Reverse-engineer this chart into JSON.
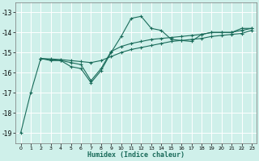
{
  "xlabel": "Humidex (Indice chaleur)",
  "ylabel": "",
  "bg_color": "#cff0ea",
  "grid_color": "#ffffff",
  "line_color": "#1a6b5a",
  "xlim": [
    -0.5,
    23.5
  ],
  "ylim": [
    -19.5,
    -12.5
  ],
  "yticks": [
    -19,
    -18,
    -17,
    -16,
    -15,
    -14,
    -13
  ],
  "xticks": [
    0,
    1,
    2,
    3,
    4,
    5,
    6,
    7,
    8,
    9,
    10,
    11,
    12,
    13,
    14,
    15,
    16,
    17,
    18,
    19,
    20,
    21,
    22,
    23
  ],
  "series1": [
    [
      0,
      -19.0
    ],
    [
      1,
      -17.0
    ],
    [
      2,
      -15.3
    ],
    [
      3,
      -15.4
    ],
    [
      4,
      -15.4
    ],
    [
      5,
      -15.7
    ],
    [
      6,
      -15.8
    ],
    [
      7,
      -16.5
    ],
    [
      8,
      -15.9
    ],
    [
      9,
      -15.0
    ],
    [
      10,
      -14.2
    ],
    [
      11,
      -13.3
    ],
    [
      12,
      -13.2
    ],
    [
      13,
      -13.8
    ],
    [
      14,
      -13.9
    ],
    [
      15,
      -14.35
    ],
    [
      16,
      -14.4
    ],
    [
      17,
      -14.45
    ],
    [
      18,
      -14.1
    ],
    [
      19,
      -14.0
    ],
    [
      20,
      -14.0
    ],
    [
      21,
      -14.0
    ],
    [
      22,
      -13.8
    ],
    [
      23,
      -13.8
    ]
  ],
  "series2": [
    [
      2,
      -15.3
    ],
    [
      3,
      -15.35
    ],
    [
      4,
      -15.4
    ],
    [
      5,
      -15.5
    ],
    [
      6,
      -15.6
    ],
    [
      7,
      -16.4
    ],
    [
      8,
      -15.8
    ],
    [
      9,
      -14.95
    ],
    [
      10,
      -14.7
    ],
    [
      11,
      -14.55
    ],
    [
      12,
      -14.45
    ],
    [
      13,
      -14.35
    ],
    [
      14,
      -14.3
    ],
    [
      15,
      -14.25
    ],
    [
      16,
      -14.2
    ],
    [
      17,
      -14.15
    ],
    [
      18,
      -14.1
    ],
    [
      19,
      -14.0
    ],
    [
      20,
      -14.0
    ],
    [
      21,
      -14.0
    ],
    [
      22,
      -13.9
    ],
    [
      23,
      -13.8
    ]
  ],
  "series3": [
    [
      2,
      -15.3
    ],
    [
      3,
      -15.32
    ],
    [
      4,
      -15.35
    ],
    [
      5,
      -15.4
    ],
    [
      6,
      -15.45
    ],
    [
      7,
      -15.5
    ],
    [
      8,
      -15.4
    ],
    [
      9,
      -15.2
    ],
    [
      10,
      -15.0
    ],
    [
      11,
      -14.85
    ],
    [
      12,
      -14.75
    ],
    [
      13,
      -14.65
    ],
    [
      14,
      -14.55
    ],
    [
      15,
      -14.45
    ],
    [
      16,
      -14.4
    ],
    [
      17,
      -14.35
    ],
    [
      18,
      -14.3
    ],
    [
      19,
      -14.2
    ],
    [
      20,
      -14.15
    ],
    [
      21,
      -14.1
    ],
    [
      22,
      -14.05
    ],
    [
      23,
      -13.9
    ]
  ]
}
